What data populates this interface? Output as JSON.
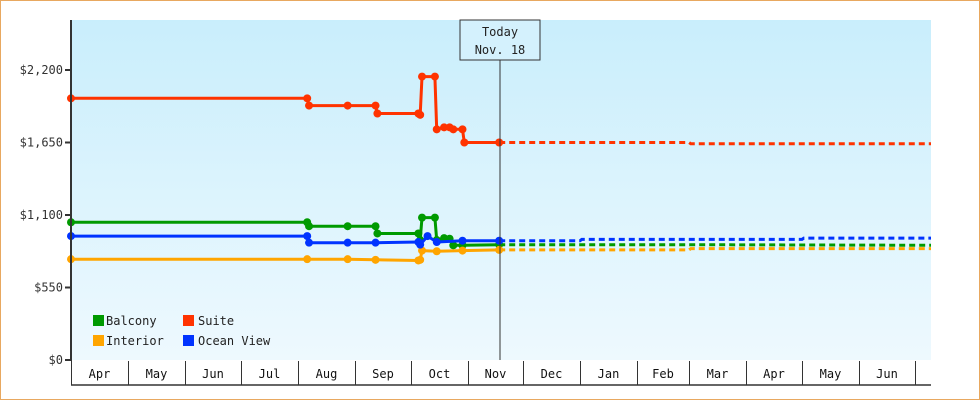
{
  "chart_data": {
    "type": "line",
    "title": "",
    "xlabel": "",
    "ylabel": "",
    "ylim": [
      0,
      2750
    ],
    "y_ticks": [
      "$0",
      "$550",
      "$1,100",
      "$1,650",
      "$2,200"
    ],
    "y_tick_values": [
      0,
      550,
      1100,
      1650,
      2200
    ],
    "x_months": [
      "Apr",
      "May",
      "Jun",
      "Jul",
      "Aug",
      "Sep",
      "Oct",
      "Nov",
      "Dec",
      "Jan",
      "Feb",
      "Mar",
      "Apr",
      "May",
      "Jun"
    ],
    "today_marker": {
      "line1": "Today",
      "line2": "Nov. 18"
    },
    "legend_position": "lower-left",
    "grid": false,
    "series": [
      {
        "name": "Balcony",
        "color": "#009a00",
        "points": [
          [
            "Apr 1",
            1045
          ],
          [
            "Aug 6",
            1045
          ],
          [
            "Aug 7",
            1015
          ],
          [
            "Aug 28",
            1015
          ],
          [
            "Sep 12",
            1015
          ],
          [
            "Sep 13",
            960
          ],
          [
            "Oct 5",
            960
          ],
          [
            "Oct 6",
            910
          ],
          [
            "Oct 7",
            1080
          ],
          [
            "Oct 14",
            1080
          ],
          [
            "Oct 15",
            910
          ],
          [
            "Oct 19",
            925
          ],
          [
            "Oct 22",
            920
          ],
          [
            "Oct 24",
            870
          ],
          [
            "Oct 29",
            870
          ],
          [
            "Nov 18",
            875
          ]
        ],
        "forecast": [
          [
            "Nov 18",
            875
          ],
          [
            "Mar 1",
            875
          ],
          [
            "Jun 30",
            870
          ]
        ]
      },
      {
        "name": "Suite",
        "color": "#ff3300",
        "points": [
          [
            "Apr 1",
            1985
          ],
          [
            "Aug 6",
            1985
          ],
          [
            "Aug 7",
            1930
          ],
          [
            "Aug 28",
            1930
          ],
          [
            "Sep 12",
            1930
          ],
          [
            "Sep 13",
            1870
          ],
          [
            "Oct 5",
            1870
          ],
          [
            "Oct 6",
            1860
          ],
          [
            "Oct 7",
            2150
          ],
          [
            "Oct 14",
            2150
          ],
          [
            "Oct 15",
            1750
          ],
          [
            "Oct 19",
            1765
          ],
          [
            "Oct 22",
            1765
          ],
          [
            "Oct 24",
            1750
          ],
          [
            "Oct 29",
            1750
          ],
          [
            "Oct 30",
            1650
          ],
          [
            "Nov 18",
            1650
          ]
        ],
        "forecast": [
          [
            "Nov 18",
            1650
          ],
          [
            "Mar 1",
            1650
          ],
          [
            "Mar 2",
            1640
          ],
          [
            "Jun 30",
            1640
          ]
        ]
      },
      {
        "name": "Interior",
        "color": "#ffa500",
        "points": [
          [
            "Apr 1",
            765
          ],
          [
            "Aug 6",
            765
          ],
          [
            "Aug 28",
            765
          ],
          [
            "Sep 12",
            760
          ],
          [
            "Oct 5",
            755
          ],
          [
            "Oct 6",
            760
          ],
          [
            "Oct 7",
            830
          ],
          [
            "Oct 15",
            825
          ],
          [
            "Oct 29",
            830
          ],
          [
            "Nov 18",
            835
          ]
        ],
        "forecast": [
          [
            "Nov 18",
            835
          ],
          [
            "Mar 1",
            835
          ],
          [
            "Mar 2",
            845
          ],
          [
            "Jun 30",
            845
          ]
        ]
      },
      {
        "name": "Ocean View",
        "color": "#0033ff",
        "points": [
          [
            "Apr 1",
            940
          ],
          [
            "Aug 6",
            940
          ],
          [
            "Aug 7",
            890
          ],
          [
            "Aug 28",
            890
          ],
          [
            "Sep 12",
            890
          ],
          [
            "Oct 5",
            895
          ],
          [
            "Oct 6",
            875
          ],
          [
            "Oct 10",
            940
          ],
          [
            "Oct 15",
            895
          ],
          [
            "Oct 29",
            905
          ],
          [
            "Nov 18",
            905
          ]
        ],
        "forecast": [
          [
            "Nov 18",
            905
          ],
          [
            "Jan 1",
            905
          ],
          [
            "Jan 2",
            915
          ],
          [
            "May 1",
            915
          ],
          [
            "May 2",
            925
          ],
          [
            "Jun 30",
            925
          ]
        ]
      }
    ]
  },
  "legend": {
    "items": [
      {
        "label": "Balcony",
        "color": "#009a00"
      },
      {
        "label": "Suite",
        "color": "#ff3300"
      },
      {
        "label": "Interior",
        "color": "#ffa500"
      },
      {
        "label": "Ocean View",
        "color": "#0033ff"
      }
    ]
  },
  "today": {
    "line1": "Today",
    "line2": "Nov. 18"
  }
}
